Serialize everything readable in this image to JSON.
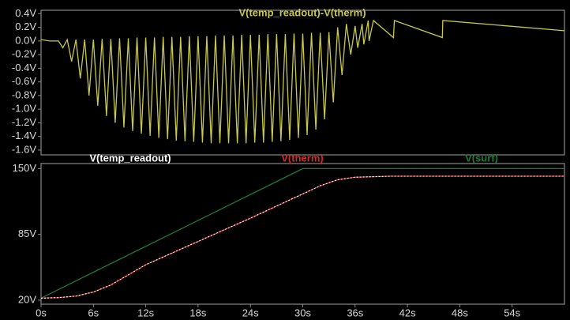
{
  "chart_data": [
    {
      "type": "line",
      "xlim": [
        0,
        60
      ],
      "ylim": [
        -1.67,
        0.45
      ],
      "yticks": [
        {
          "value": 0.4,
          "label": "0.4V"
        },
        {
          "value": 0.2,
          "label": "0.2V"
        },
        {
          "value": 0.0,
          "label": "0.0V"
        },
        {
          "value": -0.2,
          "label": "-0.2V"
        },
        {
          "value": -0.4,
          "label": "-0.4V"
        },
        {
          "value": -0.6,
          "label": "-0.6V"
        },
        {
          "value": -0.8,
          "label": "-0.8V"
        },
        {
          "value": -1.0,
          "label": "-1.0V"
        },
        {
          "value": -1.2,
          "label": "-1.2V"
        },
        {
          "value": -1.4,
          "label": "-1.4V"
        },
        {
          "value": -1.6,
          "label": "-1.6V"
        }
      ],
      "series": [
        {
          "name": "V(temp_readout)-V(therm)",
          "color": "#c8c84e",
          "x": [
            0,
            1,
            2,
            2.5,
            3,
            3.5,
            4,
            4.5,
            5,
            5.5,
            6,
            6.5,
            7,
            7.5,
            8,
            8.5,
            9,
            9.5,
            10,
            10.5,
            11,
            11.5,
            12,
            12.5,
            13,
            13.5,
            14,
            14.5,
            15,
            15.5,
            16,
            16.5,
            17,
            17.5,
            18,
            18.5,
            19,
            19.5,
            20,
            20.5,
            21,
            21.5,
            22,
            22.5,
            23,
            23.5,
            24,
            24.5,
            25,
            25.5,
            26,
            26.5,
            27,
            27.5,
            28,
            28.5,
            29,
            29.5,
            30,
            30.5,
            31,
            31.5,
            32,
            32.5,
            33,
            33.5,
            34,
            34.5,
            35,
            35.5,
            36,
            36.3,
            36.8,
            37,
            37.5,
            37.6,
            38.1,
            40.4,
            40.5,
            46,
            46.05,
            60
          ],
          "values": [
            0.02,
            0.0,
            0.0,
            -0.1,
            0.02,
            -0.3,
            0.02,
            -0.55,
            0.02,
            -0.8,
            0.02,
            -0.95,
            0.03,
            -1.1,
            0.03,
            -1.2,
            0.04,
            -1.27,
            0.04,
            -1.32,
            0.05,
            -1.36,
            0.05,
            -1.39,
            0.05,
            -1.42,
            0.06,
            -1.44,
            0.06,
            -1.46,
            0.06,
            -1.47,
            0.07,
            -1.48,
            0.07,
            -1.49,
            0.07,
            -1.5,
            0.08,
            -1.5,
            0.08,
            -1.5,
            0.08,
            -1.5,
            0.09,
            -1.5,
            0.09,
            -1.49,
            0.09,
            -1.49,
            0.1,
            -1.48,
            0.1,
            -1.47,
            0.1,
            -1.45,
            0.11,
            -1.42,
            0.11,
            -1.38,
            0.12,
            -1.3,
            0.12,
            -1.15,
            0.13,
            -0.9,
            0.2,
            -0.5,
            0.25,
            -0.2,
            0.22,
            -0.1,
            0.25,
            -0.05,
            0.3,
            0.0,
            0.3,
            0.05,
            0.3,
            0.05,
            0.3,
            0.15
          ]
        }
      ]
    },
    {
      "type": "line",
      "xlim": [
        0,
        60
      ],
      "ylim": [
        16,
        155
      ],
      "xticks": [
        {
          "value": 0,
          "label": "0s"
        },
        {
          "value": 6,
          "label": "6s"
        },
        {
          "value": 12,
          "label": "12s"
        },
        {
          "value": 18,
          "label": "18s"
        },
        {
          "value": 24,
          "label": "24s"
        },
        {
          "value": 30,
          "label": "30s"
        },
        {
          "value": 36,
          "label": "36s"
        },
        {
          "value": 42,
          "label": "42s"
        },
        {
          "value": 48,
          "label": "48s"
        },
        {
          "value": 54,
          "label": "54s"
        }
      ],
      "yticks": [
        {
          "value": 150,
          "label": "150V"
        },
        {
          "value": 85,
          "label": "85V"
        },
        {
          "value": 20,
          "label": "20V"
        }
      ],
      "series": [
        {
          "name": "V(surf)",
          "color": "#1f7a3a",
          "x": [
            0,
            30,
            60
          ],
          "values": [
            22,
            150,
            150
          ]
        },
        {
          "name": "V(therm)",
          "color": "#d42a2a",
          "x": [
            0,
            2,
            4,
            6,
            8,
            12,
            18,
            24,
            30,
            32,
            34,
            36,
            40,
            60
          ],
          "values": [
            22,
            22.5,
            24,
            28,
            35,
            55,
            78,
            101,
            125,
            133,
            139,
            141.5,
            142.5,
            142.5
          ]
        },
        {
          "name": "V(temp_readout)",
          "color": "#ffffff",
          "x": [
            0,
            2,
            4,
            6,
            8,
            12,
            18,
            24,
            30,
            32,
            34,
            36,
            40,
            60
          ],
          "values": [
            22,
            22.5,
            24,
            28,
            35,
            55,
            78,
            101,
            125,
            133,
            139,
            141.5,
            142.5,
            142.5
          ]
        }
      ]
    }
  ]
}
